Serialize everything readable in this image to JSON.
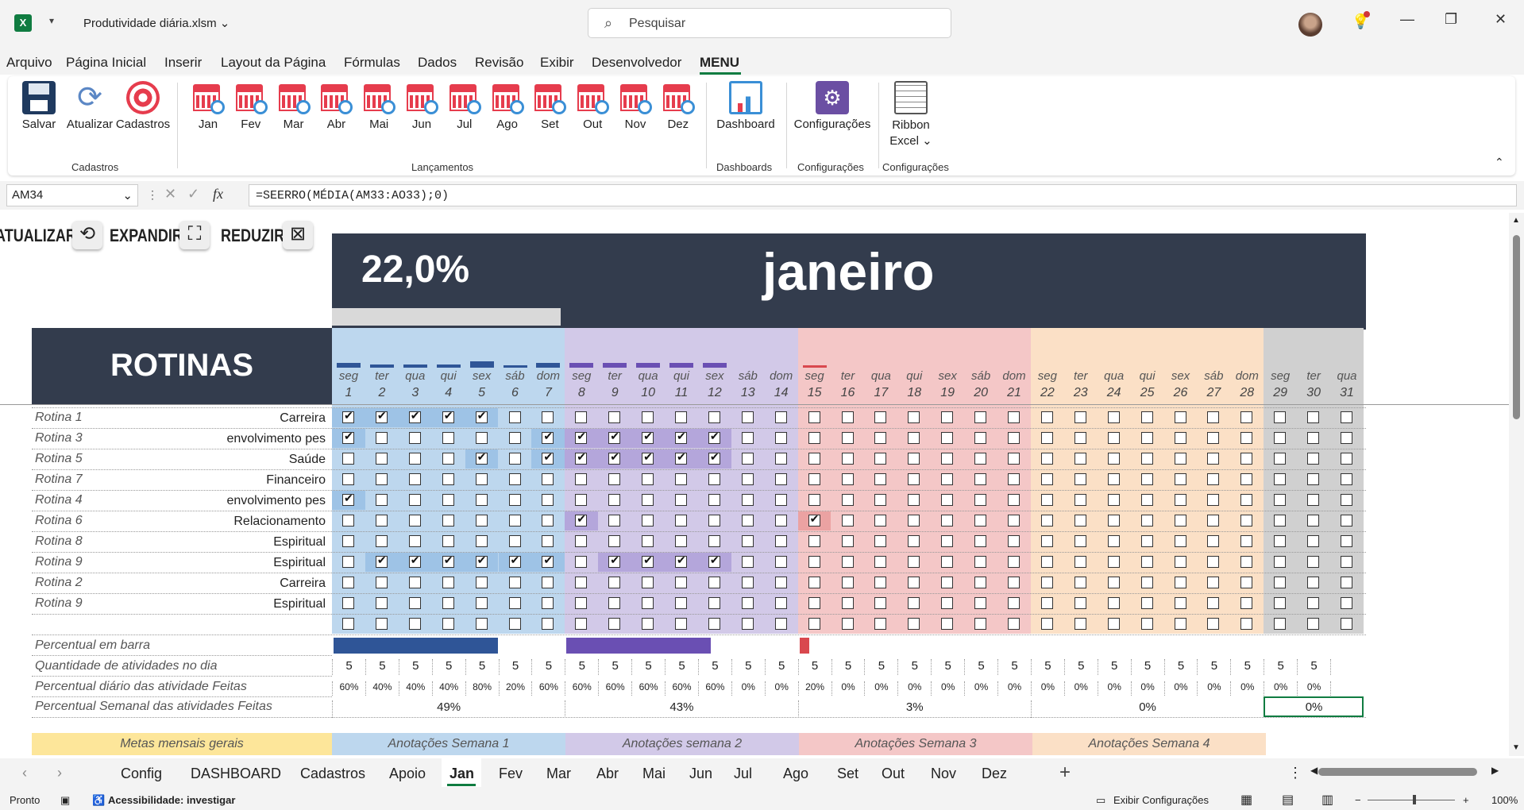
{
  "titlebar": {
    "app_icon": "X",
    "filename": "Produtividade diária.xlsm",
    "search_placeholder": "Pesquisar",
    "minimize": "—",
    "restore": "❐",
    "close": "✕"
  },
  "menu": [
    "Arquivo",
    "Página Inicial",
    "Inserir",
    "Layout da Página",
    "Fórmulas",
    "Dados",
    "Revisão",
    "Exibir",
    "Desenvolvedor",
    "MENU"
  ],
  "ribbon": {
    "cadastros": [
      "Salvar",
      "Atualizar",
      "Cadastros"
    ],
    "months": [
      "Jan",
      "Fev",
      "Mar",
      "Abr",
      "Mai",
      "Jun",
      "Jul",
      "Ago",
      "Set",
      "Out",
      "Nov",
      "Dez"
    ],
    "dashboard": "Dashboard",
    "configuracoes": "Configurações",
    "ribbon_excel_1": "Ribbon",
    "ribbon_excel_2": "Excel",
    "groups": [
      "Cadastros",
      "Lançamentos",
      "Dashboards",
      "Configurações",
      "Configurações"
    ]
  },
  "formula": {
    "namebox": "AM34",
    "fx": "fx",
    "content": "=SEERRO(MÉDIA(AM33:AO33);0)"
  },
  "controls": {
    "atualizar": "ATUALIZAR",
    "expandir": "EXPANDIR",
    "reduzir": "REDUZIR"
  },
  "sheet": {
    "percent": "22,0%",
    "month": "janeiro",
    "rotinas": "ROTINAS",
    "days": [
      "seg",
      "ter",
      "qua",
      "qui",
      "sex",
      "sáb",
      "dom",
      "seg",
      "ter",
      "qua",
      "qui",
      "sex",
      "sáb",
      "dom",
      "seg",
      "ter",
      "qua",
      "qui",
      "sex",
      "sáb",
      "dom",
      "seg",
      "ter",
      "qua",
      "qui",
      "sex",
      "sáb",
      "dom",
      "seg",
      "ter",
      "qua"
    ],
    "dates": [
      "1",
      "2",
      "3",
      "4",
      "5",
      "6",
      "7",
      "8",
      "9",
      "10",
      "11",
      "12",
      "13",
      "14",
      "15",
      "16",
      "17",
      "18",
      "19",
      "20",
      "21",
      "22",
      "23",
      "24",
      "25",
      "26",
      "27",
      "28",
      "29",
      "30",
      "31"
    ],
    "rows": [
      {
        "name": "Rotina 1",
        "cat": "Carreira",
        "checked": [
          1,
          2,
          3,
          4,
          5
        ]
      },
      {
        "name": "Rotina 3",
        "cat": "envolvimento pes",
        "checked": [
          1,
          7,
          8,
          9,
          10,
          11,
          12
        ]
      },
      {
        "name": "Rotina 5",
        "cat": "Saúde",
        "checked": [
          5,
          7,
          8,
          9,
          10,
          11,
          12
        ]
      },
      {
        "name": "Rotina 7",
        "cat": "Financeiro",
        "checked": []
      },
      {
        "name": "Rotina 4",
        "cat": "envolvimento pes",
        "checked": [
          1
        ]
      },
      {
        "name": "Rotina 6",
        "cat": "Relacionamento",
        "checked": [
          8,
          15
        ]
      },
      {
        "name": "Rotina 8",
        "cat": "Espiritual",
        "checked": []
      },
      {
        "name": "Rotina 9",
        "cat": "Espiritual",
        "checked": [
          2,
          3,
          4,
          5,
          6,
          7,
          9,
          10,
          11,
          12
        ]
      },
      {
        "name": "Rotina 2",
        "cat": "Carreira",
        "checked": []
      },
      {
        "name": "Rotina 9",
        "cat": "Espiritual",
        "checked": []
      },
      {
        "name": "",
        "cat": "",
        "checked": []
      }
    ],
    "labels": {
      "bar": "Percentual em barra",
      "qty": "Quantidade de atividades no dia",
      "daily": "Percentual  diário das atividade Feitas",
      "weekly": "Percentual Semanal das atividades Feitas"
    },
    "qty": [
      "5",
      "5",
      "5",
      "5",
      "5",
      "5",
      "5",
      "5",
      "5",
      "5",
      "5",
      "5",
      "5",
      "5",
      "5",
      "5",
      "5",
      "5",
      "5",
      "5",
      "5",
      "5",
      "5",
      "5",
      "5",
      "5",
      "5",
      "5",
      "5",
      "5",
      ""
    ],
    "daily_pct": [
      "60%",
      "40%",
      "40%",
      "40%",
      "80%",
      "20%",
      "60%",
      "60%",
      "60%",
      "60%",
      "60%",
      "60%",
      "0%",
      "0%",
      "20%",
      "0%",
      "0%",
      "0%",
      "0%",
      "0%",
      "0%",
      "0%",
      "0%",
      "0%",
      "0%",
      "0%",
      "0%",
      "0%",
      "0%",
      "0%",
      ""
    ],
    "weekly_pct": [
      "49%",
      "43%",
      "3%",
      "0%",
      "0%"
    ],
    "notes": [
      "Metas mensais gerais",
      "Anotações Semana 1",
      "Anotações semana 2",
      "Anotações Semana 3",
      "Anotações Semana 4"
    ]
  },
  "tabs": [
    "Config",
    "DASHBOARD",
    "Cadastros",
    "Apoio",
    "Jan",
    "Fev",
    "Mar",
    "Abr",
    "Mai",
    "Jun",
    "Jul",
    "Ago",
    "Set",
    "Out",
    "Nov",
    "Dez"
  ],
  "status": {
    "ready": "Pronto",
    "accessibility": "Acessibilidade: investigar",
    "settings": "Exibir Configurações",
    "zoom": "100%"
  },
  "colors": {
    "header": "#333c4d",
    "wk1": "#bdd7ee",
    "wk2": "#d2c9e8",
    "wk3": "#f4c7c7",
    "wk4": "#fbe0c6",
    "wk5": "#d0d0d0",
    "excel_green": "#107c41"
  }
}
